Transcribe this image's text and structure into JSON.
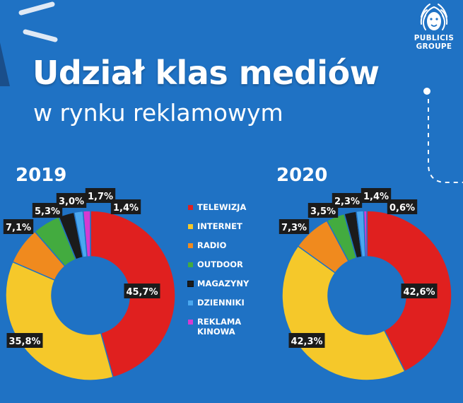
{
  "header": {
    "title": "Udział klas mediów",
    "subtitle": "w rynku reklamowym"
  },
  "logo": {
    "line1": "PUBLICIS",
    "line2": "GROUPE"
  },
  "colors": {
    "background": "#1f72c4",
    "telewizja": "#e0201f",
    "internet": "#f5c82a",
    "radio": "#f08a1e",
    "outdoor": "#43ab3f",
    "magazyny": "#1b1b1b",
    "dzienniki": "#4aa8f0",
    "kinowa": "#d73ad0",
    "label_bg": "#1b1b1b"
  },
  "legend": [
    {
      "label": "TELEWIZJA",
      "color_key": "telewizja"
    },
    {
      "label": "INTERNET",
      "color_key": "internet"
    },
    {
      "label": "RADIO",
      "color_key": "radio"
    },
    {
      "label": "OUTDOOR",
      "color_key": "outdoor"
    },
    {
      "label": "MAGAZYNY",
      "color_key": "magazyny"
    },
    {
      "label": "DZIENNIKI",
      "color_key": "dzienniki"
    },
    {
      "label": "REKLAMA KINOWA",
      "color_key": "kinowa"
    }
  ],
  "chart_data": [
    {
      "type": "pie",
      "title": "2019",
      "categories": [
        "TELEWIZJA",
        "INTERNET",
        "RADIO",
        "OUTDOOR",
        "MAGAZYNY",
        "DZIENNIKI",
        "REKLAMA KINOWA"
      ],
      "values": [
        45.7,
        35.8,
        7.1,
        5.3,
        3.0,
        1.7,
        1.4
      ],
      "labels": [
        "45,7%",
        "35,8%",
        "7,1%",
        "5,3%",
        "3,0%",
        "1,7%",
        "1,4%"
      ]
    },
    {
      "type": "pie",
      "title": "2020",
      "categories": [
        "TELEWIZJA",
        "INTERNET",
        "RADIO",
        "OUTDOOR",
        "MAGAZYNY",
        "DZIENNIKI",
        "REKLAMA KINOWA"
      ],
      "values": [
        42.6,
        42.3,
        7.3,
        3.5,
        2.3,
        1.4,
        0.6
      ],
      "labels": [
        "42,6%",
        "42,3%",
        "7,3%",
        "3,5%",
        "2,3%",
        "1,4%",
        "0,6%"
      ]
    }
  ]
}
